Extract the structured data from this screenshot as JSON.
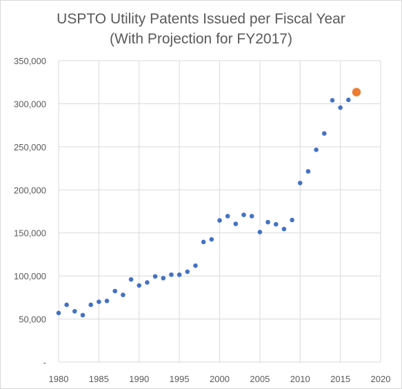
{
  "chart_data": {
    "type": "scatter",
    "title": "USPTO Utility Patents Issued per Fiscal Year",
    "subtitle": "(With Projection for FY2017)",
    "xlabel": "",
    "ylabel": "",
    "xlim": [
      1980,
      2020
    ],
    "ylim": [
      0,
      350000
    ],
    "x_ticks": [
      1980,
      1985,
      1990,
      1995,
      2000,
      2005,
      2010,
      2015,
      2020
    ],
    "y_ticks": [
      0,
      50000,
      100000,
      150000,
      200000,
      250000,
      300000,
      350000
    ],
    "x_tick_labels": [
      "1980",
      "1985",
      "1990",
      "1995",
      "2000",
      "2005",
      "2010",
      "2015",
      "2020"
    ],
    "y_tick_labels": [
      "-",
      "50,000",
      "100,000",
      "150,000",
      "200,000",
      "250,000",
      "300,000",
      "350,000"
    ],
    "grid": true,
    "series": [
      {
        "color": "#4472c4",
        "x": [
          1980,
          1981,
          1982,
          1983,
          1984,
          1985,
          1986,
          1987,
          1988,
          1989,
          1990,
          1991,
          1992,
          1993,
          1994,
          1995,
          1996,
          1997,
          1998,
          1999,
          2000,
          2001,
          2002,
          2003,
          2004,
          2005,
          2006,
          2007,
          2008,
          2009,
          2010,
          2011,
          2012,
          2013,
          2014,
          2015,
          2016
        ],
        "y": [
          57000,
          66500,
          59000,
          54500,
          66500,
          70000,
          71000,
          82500,
          78000,
          96000,
          89000,
          92500,
          99500,
          97500,
          101500,
          101500,
          105000,
          112000,
          139500,
          142500,
          164500,
          169500,
          160500,
          171000,
          169500,
          151000,
          162500,
          160000,
          154500,
          165000,
          208000,
          221500,
          246500,
          265500,
          304000,
          295500,
          304500
        ]
      },
      {
        "color": "#ed7d31",
        "x": [
          2017
        ],
        "y": [
          313500
        ]
      }
    ]
  }
}
